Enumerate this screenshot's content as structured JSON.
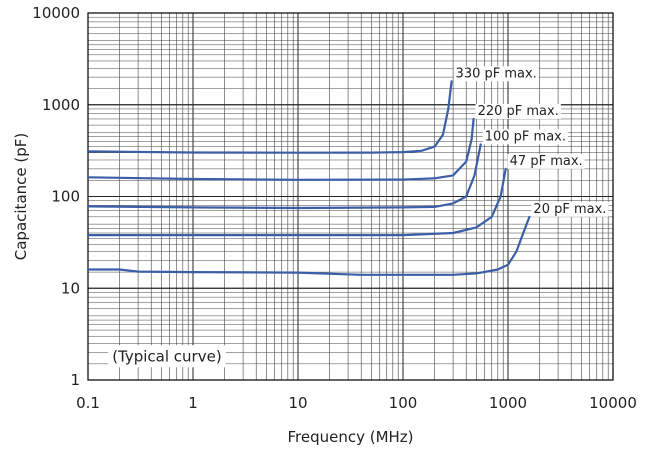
{
  "chart_data": {
    "type": "line",
    "xlabel": "Frequency (MHz)",
    "ylabel": "Capacitance (pF)",
    "xscale": "log",
    "yscale": "log",
    "xlim": [
      0.1,
      10000
    ],
    "ylim": [
      1,
      10000
    ],
    "x_ticks": [
      "0.1",
      "1",
      "10",
      "100",
      "1000",
      "10000"
    ],
    "y_ticks": [
      "1",
      "10",
      "100",
      "1000",
      "10000"
    ],
    "grid": true,
    "annotation": "(Typical curve)",
    "line_color": "#3b5ea8",
    "series": [
      {
        "name": "330 pF max.",
        "points": [
          [
            0.1,
            310
          ],
          [
            1,
            302
          ],
          [
            10,
            300
          ],
          [
            50,
            301
          ],
          [
            100,
            305
          ],
          [
            150,
            315
          ],
          [
            200,
            350
          ],
          [
            240,
            470
          ],
          [
            270,
            900
          ],
          [
            290,
            1800
          ]
        ]
      },
      {
        "name": "220 pF max.",
        "points": [
          [
            0.1,
            162
          ],
          [
            1,
            155
          ],
          [
            10,
            152
          ],
          [
            100,
            153
          ],
          [
            200,
            158
          ],
          [
            300,
            170
          ],
          [
            400,
            240
          ],
          [
            450,
            420
          ],
          [
            470,
            700
          ]
        ]
      },
      {
        "name": "100 pF max.",
        "points": [
          [
            0.1,
            78
          ],
          [
            1,
            76
          ],
          [
            10,
            75
          ],
          [
            100,
            76
          ],
          [
            200,
            77
          ],
          [
            300,
            84
          ],
          [
            400,
            100
          ],
          [
            480,
            170
          ],
          [
            550,
            370
          ]
        ]
      },
      {
        "name": "47 pF max.",
        "points": [
          [
            0.1,
            38
          ],
          [
            1,
            38
          ],
          [
            10,
            38
          ],
          [
            100,
            38
          ],
          [
            300,
            40
          ],
          [
            500,
            46
          ],
          [
            700,
            60
          ],
          [
            850,
            100
          ],
          [
            950,
            200
          ]
        ]
      },
      {
        "name": "20 pF max.",
        "points": [
          [
            0.1,
            16
          ],
          [
            0.2,
            16
          ],
          [
            0.3,
            15.2
          ],
          [
            1,
            15
          ],
          [
            10,
            14.8
          ],
          [
            40,
            14
          ],
          [
            100,
            14
          ],
          [
            300,
            14
          ],
          [
            500,
            14.5
          ],
          [
            800,
            16
          ],
          [
            1000,
            18
          ],
          [
            1200,
            25
          ],
          [
            1400,
            40
          ],
          [
            1600,
            60
          ]
        ]
      }
    ]
  }
}
